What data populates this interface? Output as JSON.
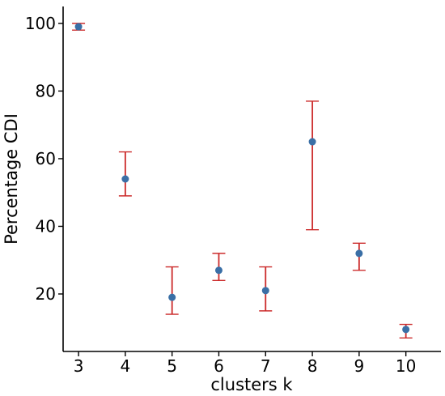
{
  "chart_data": {
    "type": "scatter",
    "title": "",
    "xlabel": "clusters k",
    "ylabel": "Percentage CDI",
    "x": [
      3,
      4,
      5,
      6,
      7,
      8,
      9,
      10
    ],
    "series": [
      {
        "values": [
          99,
          54,
          19,
          27,
          21,
          65,
          32,
          9.5
        ],
        "error_low": [
          98,
          49,
          14,
          24,
          15,
          39,
          27,
          7
        ],
        "error_high": [
          100,
          62,
          28,
          32,
          28,
          77,
          35,
          11
        ]
      }
    ],
    "x_ticks": [
      "3",
      "4",
      "5",
      "6",
      "7",
      "8",
      "9",
      "10"
    ],
    "y_ticks": [
      "20",
      "40",
      "60",
      "80",
      "100"
    ],
    "xlim": [
      2.67,
      10.75
    ],
    "ylim": [
      3,
      105
    ],
    "grid": false,
    "colors": {
      "marker": "#3a6fa6",
      "error_bar": "#cc2b2b",
      "axis": "#000000"
    }
  }
}
